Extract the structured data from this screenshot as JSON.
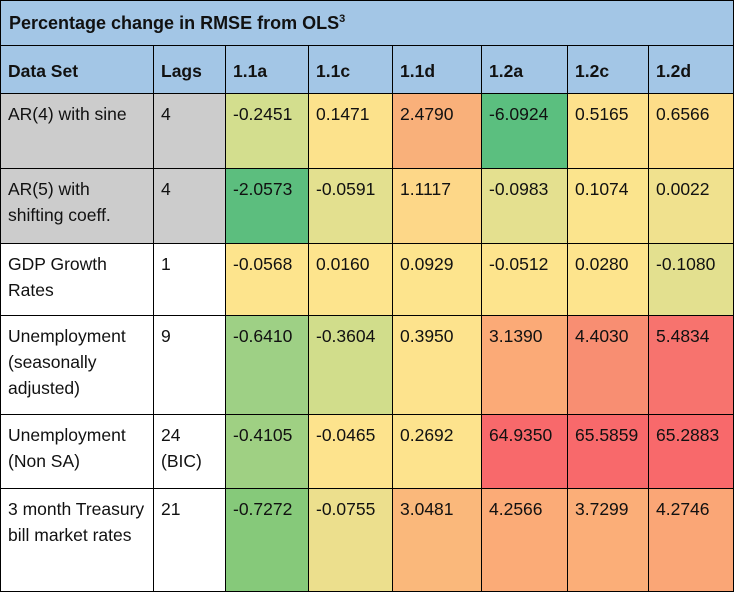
{
  "title": "Percentage change in RMSE from OLS",
  "title_superscript": "3",
  "columns": [
    "Data Set",
    "Lags",
    "1.1a",
    "1.1c",
    "1.1d",
    "1.2a",
    "1.2c",
    "1.2d"
  ],
  "rows": [
    {
      "dataset": "AR(4) with sine",
      "lags": "4",
      "label_bg": "#cccccc",
      "cells": [
        {
          "value": "-0.2451",
          "color": "#d3de8e"
        },
        {
          "value": "0.1471",
          "color": "#fce28c"
        },
        {
          "value": "2.4790",
          "color": "#f9b07a"
        },
        {
          "value": "-6.0924",
          "color": "#5bbf7f"
        },
        {
          "value": "0.5165",
          "color": "#fde18c"
        },
        {
          "value": "0.6566",
          "color": "#fddd89"
        }
      ]
    },
    {
      "dataset": "AR(5) with shifting coeff.",
      "lags": "4",
      "label_bg": "#cccccc",
      "cells": [
        {
          "value": "-2.0573",
          "color": "#5cbe7e"
        },
        {
          "value": "-0.0591",
          "color": "#e3e08f"
        },
        {
          "value": "1.1117",
          "color": "#fdd788"
        },
        {
          "value": "-0.0983",
          "color": "#e4e08f"
        },
        {
          "value": "0.1074",
          "color": "#fbe48d"
        },
        {
          "value": "0.0022",
          "color": "#f0e18e"
        }
      ]
    },
    {
      "dataset": "GDP Growth Rates",
      "lags": "1",
      "label_bg": "#ffffff",
      "cells": [
        {
          "value": "-0.0568",
          "color": "#fde48d"
        },
        {
          "value": "0.0160",
          "color": "#fde48d"
        },
        {
          "value": "0.0929",
          "color": "#fde48d"
        },
        {
          "value": "-0.0512",
          "color": "#fde48d"
        },
        {
          "value": "0.0280",
          "color": "#fde48d"
        },
        {
          "value": "-0.1080",
          "color": "#e3e08f"
        }
      ]
    },
    {
      "dataset": "Unemployment (seasonally adjusted)",
      "lags": "9",
      "label_bg": "#ffffff",
      "cells": [
        {
          "value": "-0.6410",
          "color": "#9ed085"
        },
        {
          "value": "-0.3604",
          "color": "#d1dd8b"
        },
        {
          "value": "0.3950",
          "color": "#fde38d"
        },
        {
          "value": "3.1390",
          "color": "#fbaa77"
        },
        {
          "value": "4.4030",
          "color": "#f88e72"
        },
        {
          "value": "5.4834",
          "color": "#f7736e"
        }
      ]
    },
    {
      "dataset": "Unemployment (Non SA)",
      "lags": "24 (BIC)",
      "label_bg": "#ffffff",
      "cells": [
        {
          "value": "-0.4105",
          "color": "#9fd083"
        },
        {
          "value": "-0.0465",
          "color": "#fde38d"
        },
        {
          "value": "0.2692",
          "color": "#fde38d"
        },
        {
          "value": "64.9350",
          "color": "#f8696b"
        },
        {
          "value": "65.5859",
          "color": "#f8696b"
        },
        {
          "value": "65.2883",
          "color": "#f8696b"
        }
      ]
    },
    {
      "dataset": "3 month Treasury bill market rates",
      "lags": "21",
      "label_bg": "#ffffff",
      "cells": [
        {
          "value": "-0.7272",
          "color": "#86c97a"
        },
        {
          "value": "-0.0755",
          "color": "#ecdf8d"
        },
        {
          "value": "3.0481",
          "color": "#fab87b"
        },
        {
          "value": "4.2566",
          "color": "#fbab77"
        },
        {
          "value": "3.7299",
          "color": "#fbae78"
        },
        {
          "value": "4.2746",
          "color": "#faa676"
        }
      ]
    }
  ]
}
